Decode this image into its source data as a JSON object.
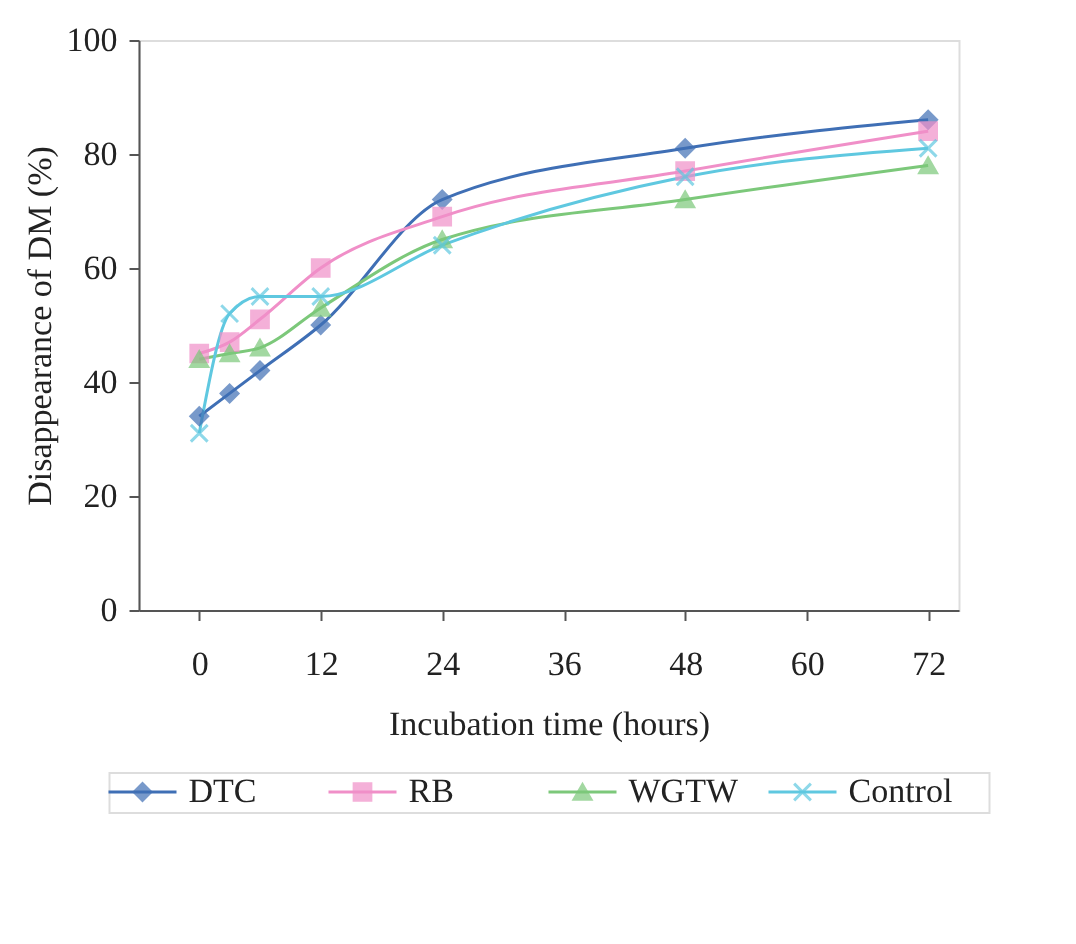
{
  "chart_data": {
    "type": "line",
    "xlabel": "Incubation time (hours)",
    "ylabel": "Disappearance of DM (%)",
    "x": [
      0,
      3,
      6,
      12,
      24,
      48,
      72
    ],
    "xlim": [
      -6,
      75
    ],
    "xticks": [
      0,
      12,
      24,
      36,
      48,
      60,
      72
    ],
    "ylim": [
      0,
      100
    ],
    "yticks": [
      0,
      20,
      40,
      60,
      80,
      100
    ],
    "grid": false,
    "legend": "bottom",
    "series": [
      {
        "name": "DTC",
        "color": "#3f6fb5",
        "marker": "diamond",
        "values": [
          34,
          38,
          42,
          50,
          72,
          81,
          86
        ]
      },
      {
        "name": "RB",
        "color": "#f08fc8",
        "marker": "square",
        "values": [
          45,
          47,
          51,
          60,
          69,
          77,
          84
        ]
      },
      {
        "name": "WGTW",
        "color": "#7cc87a",
        "marker": "triangle",
        "values": [
          44,
          45,
          46,
          53,
          65,
          72,
          78
        ]
      },
      {
        "name": "Control",
        "color": "#5fc8e0",
        "marker": "cross",
        "values": [
          31,
          52,
          55,
          55,
          64,
          76,
          81
        ]
      }
    ]
  }
}
